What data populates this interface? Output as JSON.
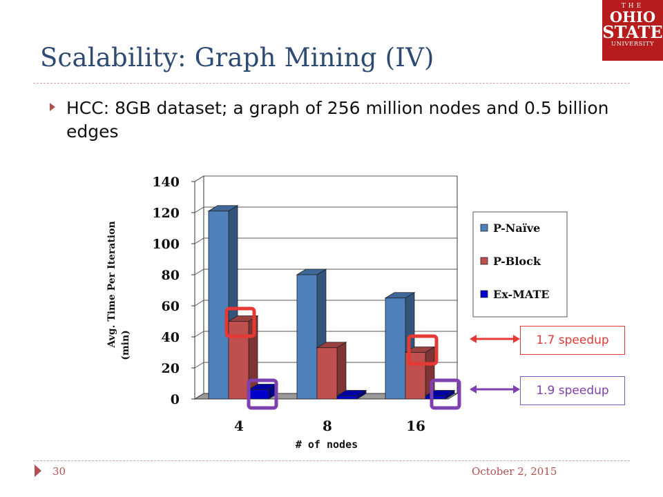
{
  "slide": {
    "title": "Scalability: Graph Mining (IV)",
    "bullet": "HCC: 8GB dataset; a graph of 256 million nodes and 0.5 billion edges",
    "page_number": "30",
    "date": "October 2, 2015"
  },
  "logo": {
    "line1": "THE",
    "line2": "OHIO",
    "line3": "STATE",
    "line4": "UNIVERSITY"
  },
  "callouts": {
    "red": "1.7 speedup",
    "purple": "1.9 speedup"
  },
  "colors": {
    "title": "#2e4a73",
    "accent": "#b05050",
    "highlight_red": "#e53935",
    "highlight_purple": "#7e3fb0"
  },
  "chart_data": {
    "type": "bar",
    "categories": [
      "4",
      "8",
      "16"
    ],
    "series": [
      {
        "name": "P-Naïve",
        "values": [
          121,
          80,
          65
        ],
        "color": "#4f81bd"
      },
      {
        "name": "P-Block",
        "values": [
          50,
          33,
          30
        ],
        "color": "#c0504d"
      },
      {
        "name": "Ex-MATE",
        "values": [
          6,
          2,
          2
        ],
        "color": "#0000cc"
      }
    ],
    "xlabel": "# of nodes",
    "ylabel": "Avg. Time Per Iteration (min)",
    "ylim": [
      0,
      140
    ],
    "yticks": [
      0,
      20,
      40,
      60,
      80,
      100,
      120,
      140
    ],
    "grid": true,
    "legend": "right",
    "style": "3d"
  }
}
